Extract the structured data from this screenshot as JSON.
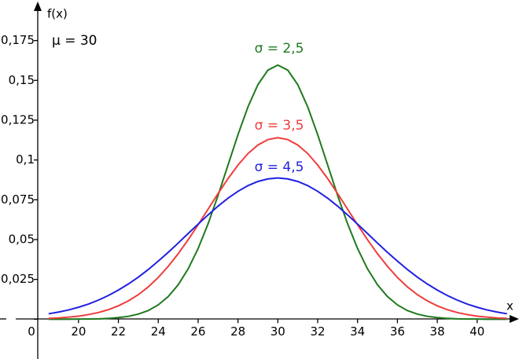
{
  "chart_data": {
    "type": "line",
    "xlabel": "x",
    "ylabel": "f(x)",
    "annotations": [
      "μ = 30"
    ],
    "x": [
      18.5,
      19,
      19.5,
      20,
      20.5,
      21,
      21.5,
      22,
      22.5,
      23,
      23.5,
      24,
      24.5,
      25,
      25.5,
      26,
      26.5,
      27,
      27.5,
      28,
      28.5,
      29,
      29.5,
      30,
      30.5,
      31,
      31.5,
      32,
      32.5,
      33,
      33.5,
      34,
      34.5,
      35,
      35.5,
      36,
      36.5,
      37,
      37.5,
      38,
      38.5,
      39,
      39.5,
      40,
      40.5,
      41,
      41.5
    ],
    "series": [
      {
        "name": "σ = 2,5",
        "color": "#1e7a1e",
        "values": [
          0,
          0,
          0,
          0.0001,
          0.0001,
          0.0002,
          0.0005,
          0.001,
          0.0018,
          0.0032,
          0.0054,
          0.009,
          0.0142,
          0.0216,
          0.0316,
          0.0444,
          0.0599,
          0.0777,
          0.0968,
          0.1159,
          0.1333,
          0.1473,
          0.1564,
          0.1596,
          0.1564,
          0.1473,
          0.1333,
          0.1159,
          0.0968,
          0.0777,
          0.0599,
          0.0444,
          0.0316,
          0.0216,
          0.0142,
          0.009,
          0.0054,
          0.0032,
          0.0018,
          0.001,
          0.0005,
          0.0002,
          0.0001,
          0.0001,
          0,
          0,
          0
        ]
      },
      {
        "name": "σ = 3,5",
        "color": "#f03c3c",
        "values": [
          0.0005,
          0.0008,
          0.0013,
          0.0019,
          0.0029,
          0.0042,
          0.006,
          0.0084,
          0.0115,
          0.0154,
          0.0203,
          0.0262,
          0.0332,
          0.0411,
          0.0499,
          0.0593,
          0.0691,
          0.0789,
          0.0883,
          0.0968,
          0.104,
          0.1094,
          0.1128,
          0.114,
          0.1128,
          0.1094,
          0.104,
          0.0968,
          0.0883,
          0.0789,
          0.0691,
          0.0593,
          0.0499,
          0.0411,
          0.0332,
          0.0262,
          0.0203,
          0.0154,
          0.0115,
          0.0084,
          0.006,
          0.0042,
          0.0029,
          0.0019,
          0.0013,
          0.0008,
          0.0005
        ]
      },
      {
        "name": "σ = 4,5",
        "color": "#2020e0",
        "values": [
          0.0034,
          0.0045,
          0.0058,
          0.0075,
          0.0095,
          0.012,
          0.0149,
          0.0183,
          0.0221,
          0.0264,
          0.0312,
          0.0365,
          0.042,
          0.0478,
          0.0538,
          0.0597,
          0.0655,
          0.071,
          0.076,
          0.0803,
          0.0839,
          0.0865,
          0.0881,
          0.0887,
          0.0881,
          0.0865,
          0.0839,
          0.0803,
          0.076,
          0.071,
          0.0655,
          0.0597,
          0.0538,
          0.0478,
          0.042,
          0.0365,
          0.0312,
          0.0264,
          0.0221,
          0.0183,
          0.0149,
          0.012,
          0.0095,
          0.0075,
          0.0058,
          0.0045,
          0.0034
        ]
      }
    ],
    "xlim": [
      16.06,
      42.1
    ],
    "ylim": [
      -0.025,
      0.198
    ],
    "xticks": [
      20,
      22,
      24,
      26,
      28,
      30,
      32,
      34,
      36,
      38,
      40
    ],
    "yticks": [
      0,
      {
        "value": 0.025,
        "label": "0,025"
      },
      {
        "value": 0.05,
        "label": "0,05"
      },
      {
        "value": 0.075,
        "label": "0,075"
      },
      {
        "value": 0.1,
        "label": "0,1"
      },
      {
        "value": 0.125,
        "label": "0,125"
      },
      {
        "value": 0.15,
        "label": "0,15"
      },
      {
        "value": 0.175,
        "label": "0,175"
      }
    ],
    "grid": false
  }
}
